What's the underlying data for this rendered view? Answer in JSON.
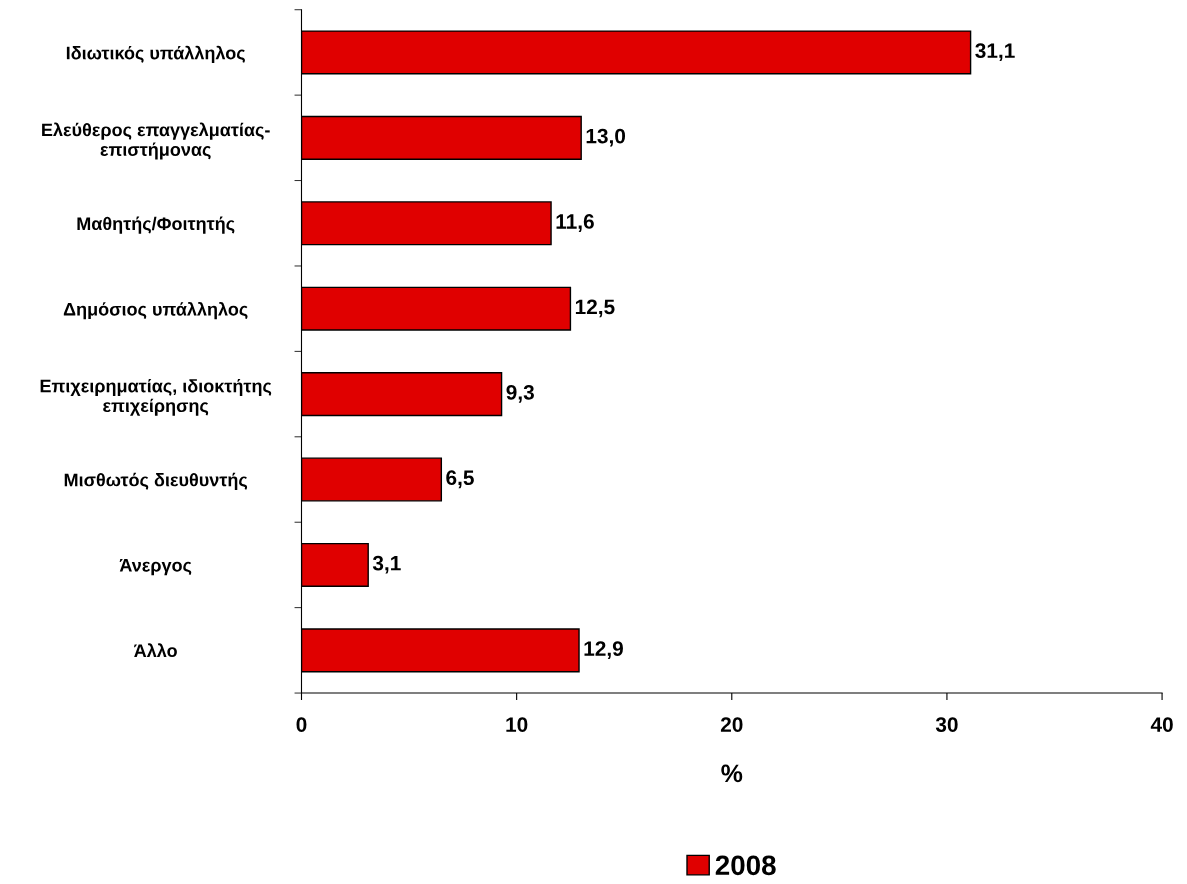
{
  "chart_data": {
    "type": "bar",
    "orientation": "horizontal",
    "xlabel": "%",
    "categories": [
      "Ιδιωτικός υπάλληλος",
      "Ελεύθερος επαγγελματίας-\nεπιστήμονας",
      "Μαθητής/Φοιτητής",
      "Δημόσιος υπάλληλος",
      "Επιχειρηματίας, ιδιοκτήτης\nεπιχείρησης",
      "Μισθωτός διευθυντής",
      "Άνεργος",
      "Άλλο"
    ],
    "series": [
      {
        "name": "2008",
        "color": "#e00000",
        "values": [
          31.1,
          13.0,
          11.6,
          12.5,
          9.3,
          6.5,
          3.1,
          12.9
        ],
        "value_labels": [
          "31,1",
          "13,0",
          "11,6",
          "12,5",
          "9,3",
          "6,5",
          "3,1",
          "12,9"
        ]
      }
    ],
    "xlim": [
      0,
      40
    ],
    "xticks": [
      0,
      10,
      20,
      30,
      40
    ],
    "grid": false,
    "legend": "bottom"
  }
}
